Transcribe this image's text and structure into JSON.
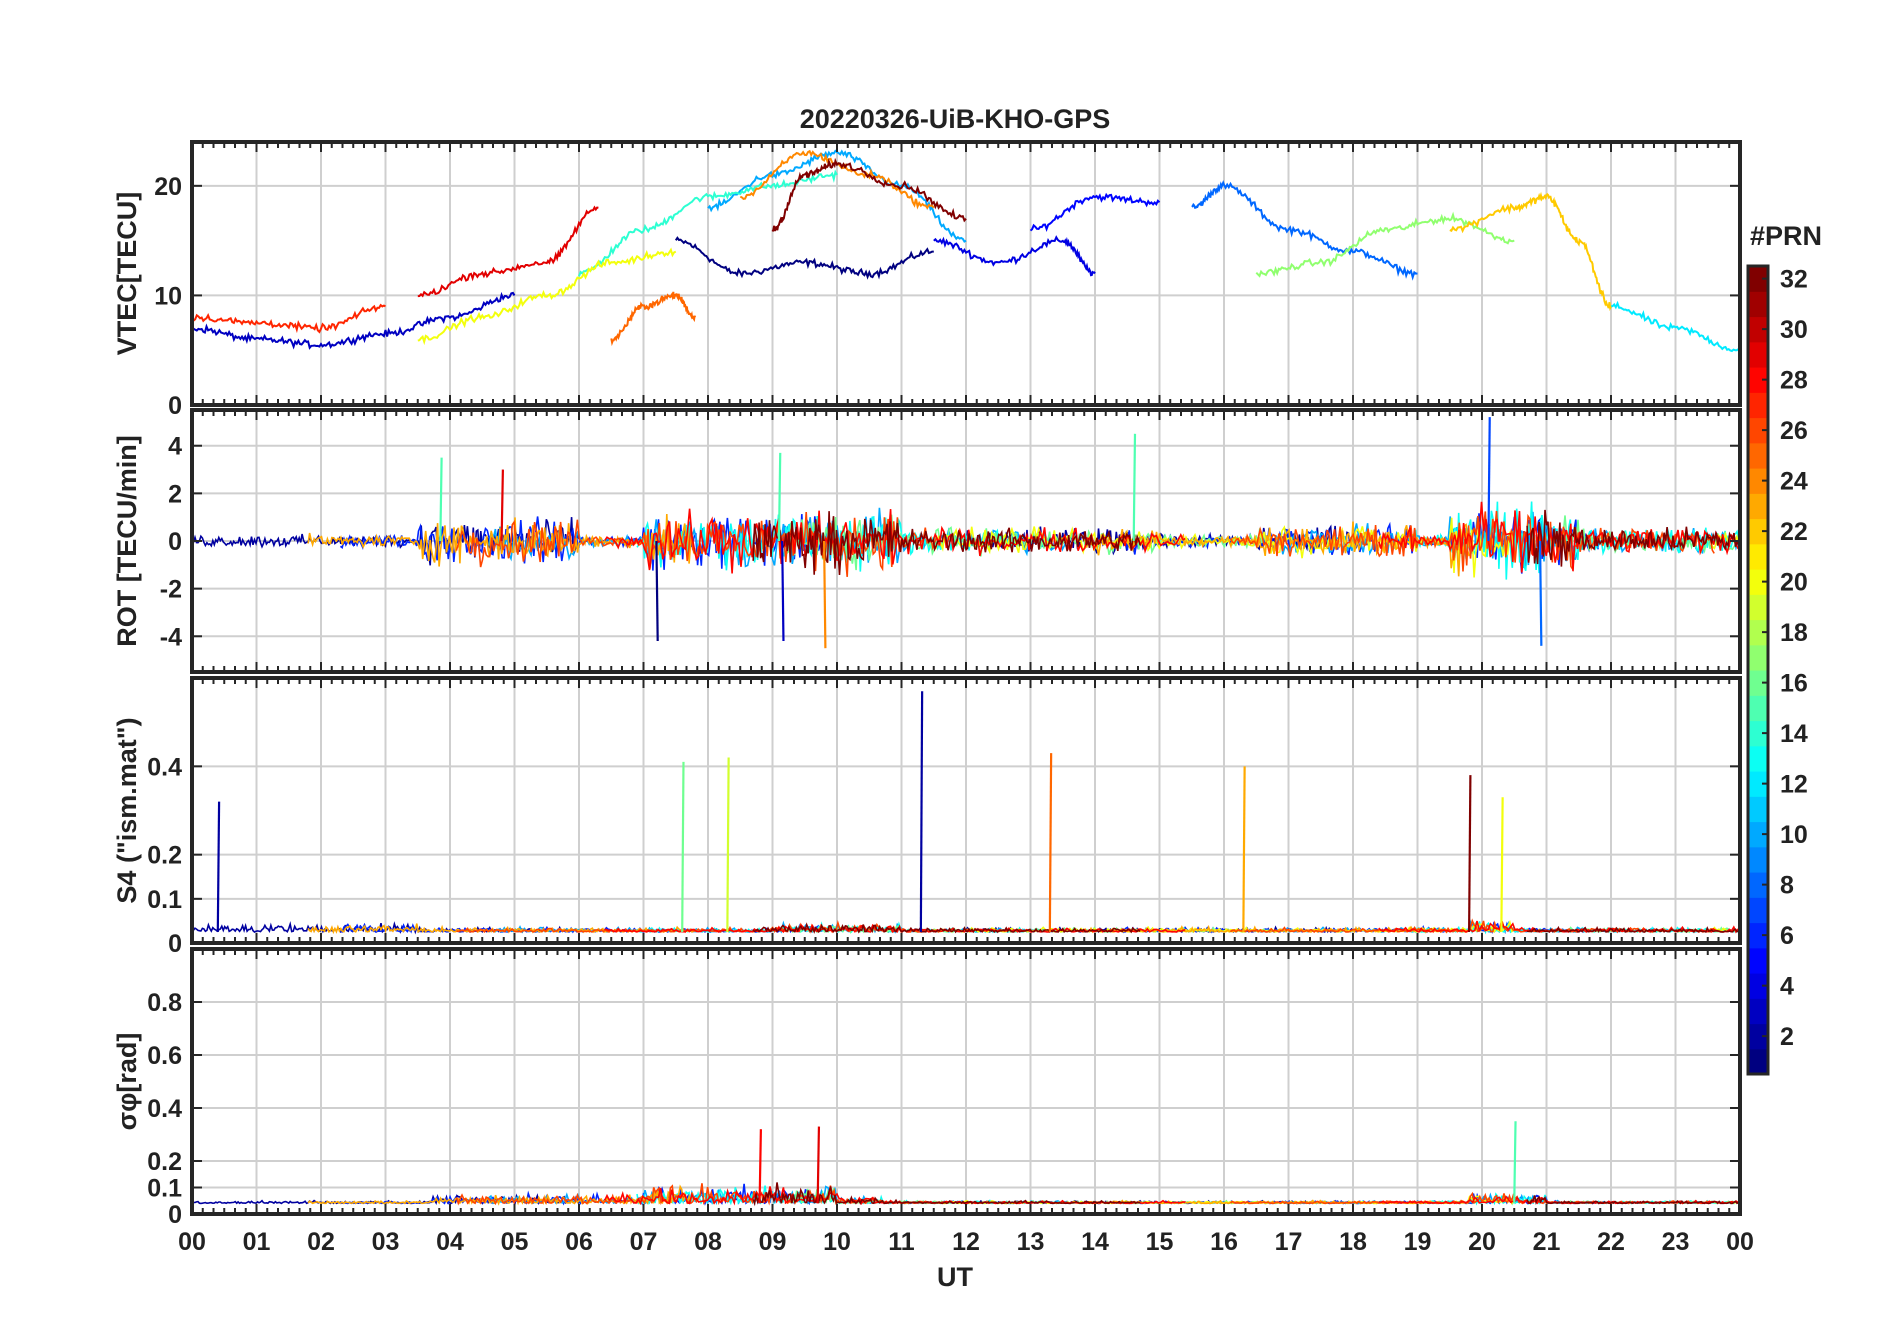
{
  "title": "20220326-UiB-KHO-GPS",
  "xlabel": "UT",
  "x_tick_labels": [
    "00",
    "01",
    "02",
    "03",
    "04",
    "05",
    "06",
    "07",
    "08",
    "09",
    "10",
    "11",
    "12",
    "13",
    "14",
    "15",
    "16",
    "17",
    "18",
    "19",
    "20",
    "21",
    "22",
    "23",
    "00"
  ],
  "colorbar": {
    "label": "#PRN",
    "range": [
      1,
      32
    ],
    "ticks": [
      2,
      4,
      6,
      8,
      10,
      12,
      14,
      16,
      18,
      20,
      22,
      24,
      26,
      28,
      30,
      32
    ],
    "colormap": "jet"
  },
  "chart_data": [
    {
      "type": "line",
      "panel": "VTEC",
      "ylabel": "VTEC[TECU]",
      "xlim": [
        0,
        24
      ],
      "ylim": [
        0,
        24
      ],
      "yticks": [
        0,
        10,
        20
      ],
      "grid": true,
      "description_series": "multiple PRN arcs colored by PRN",
      "series": [
        {
          "prn": 1,
          "x": [
            7.5,
            8.5,
            9.5,
            10.5,
            11.5
          ],
          "y": [
            15,
            12,
            13,
            12,
            14
          ]
        },
        {
          "prn": 3,
          "x": [
            0.0,
            1.0,
            2.0,
            3.0,
            4.0,
            5.0
          ],
          "y": [
            7,
            6,
            5.5,
            6.5,
            8,
            10
          ]
        },
        {
          "prn": 4,
          "x": [
            11.5,
            12.5,
            13.5,
            14.0
          ],
          "y": [
            15,
            13,
            15,
            12
          ]
        },
        {
          "prn": 5,
          "x": [
            13.0,
            14.0,
            15.0
          ],
          "y": [
            16,
            19,
            18.5
          ]
        },
        {
          "prn": 8,
          "x": [
            15.5,
            16.0,
            17.0,
            18.0,
            19.0
          ],
          "y": [
            18,
            20,
            16,
            14,
            12
          ]
        },
        {
          "prn": 10,
          "x": [
            8.0,
            9.0,
            10.0,
            11.0,
            12.0
          ],
          "y": [
            18,
            21,
            23,
            20,
            15
          ]
        },
        {
          "prn": 12,
          "x": [
            22.0,
            23.0,
            24.0
          ],
          "y": [
            9,
            7,
            5
          ]
        },
        {
          "prn": 14,
          "x": [
            6.0,
            7.0,
            8.0,
            9.0,
            10.0
          ],
          "y": [
            12,
            16,
            19,
            20,
            21
          ]
        },
        {
          "prn": 17,
          "x": [
            16.5,
            17.5,
            18.5,
            19.5,
            20.5
          ],
          "y": [
            12,
            13,
            16,
            17,
            15
          ]
        },
        {
          "prn": 20,
          "x": [
            3.5,
            4.5,
            5.5,
            6.5,
            7.5
          ],
          "y": [
            6,
            8,
            10,
            13,
            14
          ]
        },
        {
          "prn": 22,
          "x": [
            19.5,
            20.5,
            21.0,
            21.5,
            22.0
          ],
          "y": [
            16,
            18,
            19,
            15,
            9
          ]
        },
        {
          "prn": 24,
          "x": [
            8.5,
            9.5,
            10.5,
            11.5
          ],
          "y": [
            19,
            23,
            21,
            18
          ]
        },
        {
          "prn": 25,
          "x": [
            6.5,
            7.0,
            7.5,
            7.8
          ],
          "y": [
            6,
            9,
            10,
            8
          ]
        },
        {
          "prn": 27,
          "x": [
            0.0,
            1.0,
            2.0,
            3.0
          ],
          "y": [
            8,
            7.5,
            7,
            9
          ]
        },
        {
          "prn": 29,
          "x": [
            3.5,
            4.5,
            5.5,
            6.3
          ],
          "y": [
            10,
            12,
            13,
            18
          ]
        },
        {
          "prn": 32,
          "x": [
            9.0,
            9.5,
            10.0,
            11.0,
            12.0
          ],
          "y": [
            16,
            21,
            22,
            20,
            17
          ]
        }
      ]
    },
    {
      "type": "line",
      "panel": "ROT",
      "ylabel": "ROT [TECU/min]",
      "xlim": [
        0,
        24
      ],
      "ylim": [
        -5.5,
        5.5
      ],
      "yticks": [
        -4,
        -2,
        0,
        2,
        4
      ],
      "grid": true,
      "notable_spikes": [
        {
          "x": 3.85,
          "y": 3.5
        },
        {
          "x": 4.8,
          "y": 3.0
        },
        {
          "x": 9.15,
          "y": -4.2
        },
        {
          "x": 9.1,
          "y": 3.7
        },
        {
          "x": 9.8,
          "y": -4.5
        },
        {
          "x": 7.2,
          "y": -4.2
        },
        {
          "x": 14.6,
          "y": 4.5
        },
        {
          "x": 20.1,
          "y": 5.2
        },
        {
          "x": 20.9,
          "y": -4.4
        }
      ]
    },
    {
      "type": "line",
      "panel": "S4",
      "ylabel": "S4 (\"ism.mat\")",
      "xlim": [
        0,
        24
      ],
      "ylim": [
        0,
        0.6
      ],
      "yticks": [
        0,
        0.1,
        0.2,
        0.4
      ],
      "grid": true,
      "notable_spikes": [
        {
          "x": 0.4,
          "y": 0.32,
          "prn": 2
        },
        {
          "x": 7.6,
          "y": 0.41,
          "prn": 16
        },
        {
          "x": 8.3,
          "y": 0.42,
          "prn": 19
        },
        {
          "x": 11.3,
          "y": 0.57,
          "prn": 2
        },
        {
          "x": 13.3,
          "y": 0.43,
          "prn": 25
        },
        {
          "x": 16.3,
          "y": 0.4,
          "prn": 23
        },
        {
          "x": 19.8,
          "y": 0.38,
          "prn": 32
        },
        {
          "x": 20.3,
          "y": 0.33,
          "prn": 20
        }
      ]
    },
    {
      "type": "line",
      "panel": "sigma_phi",
      "ylabel": "σφ[rad]",
      "xlim": [
        0,
        24
      ],
      "ylim": [
        0,
        1.0
      ],
      "yticks": [
        0,
        0.1,
        0.2,
        0.4,
        0.6,
        0.8
      ],
      "grid": true,
      "notable_spikes": [
        {
          "x": 8.8,
          "y": 0.32
        },
        {
          "x": 9.7,
          "y": 0.33
        },
        {
          "x": 20.5,
          "y": 0.35
        }
      ]
    }
  ]
}
